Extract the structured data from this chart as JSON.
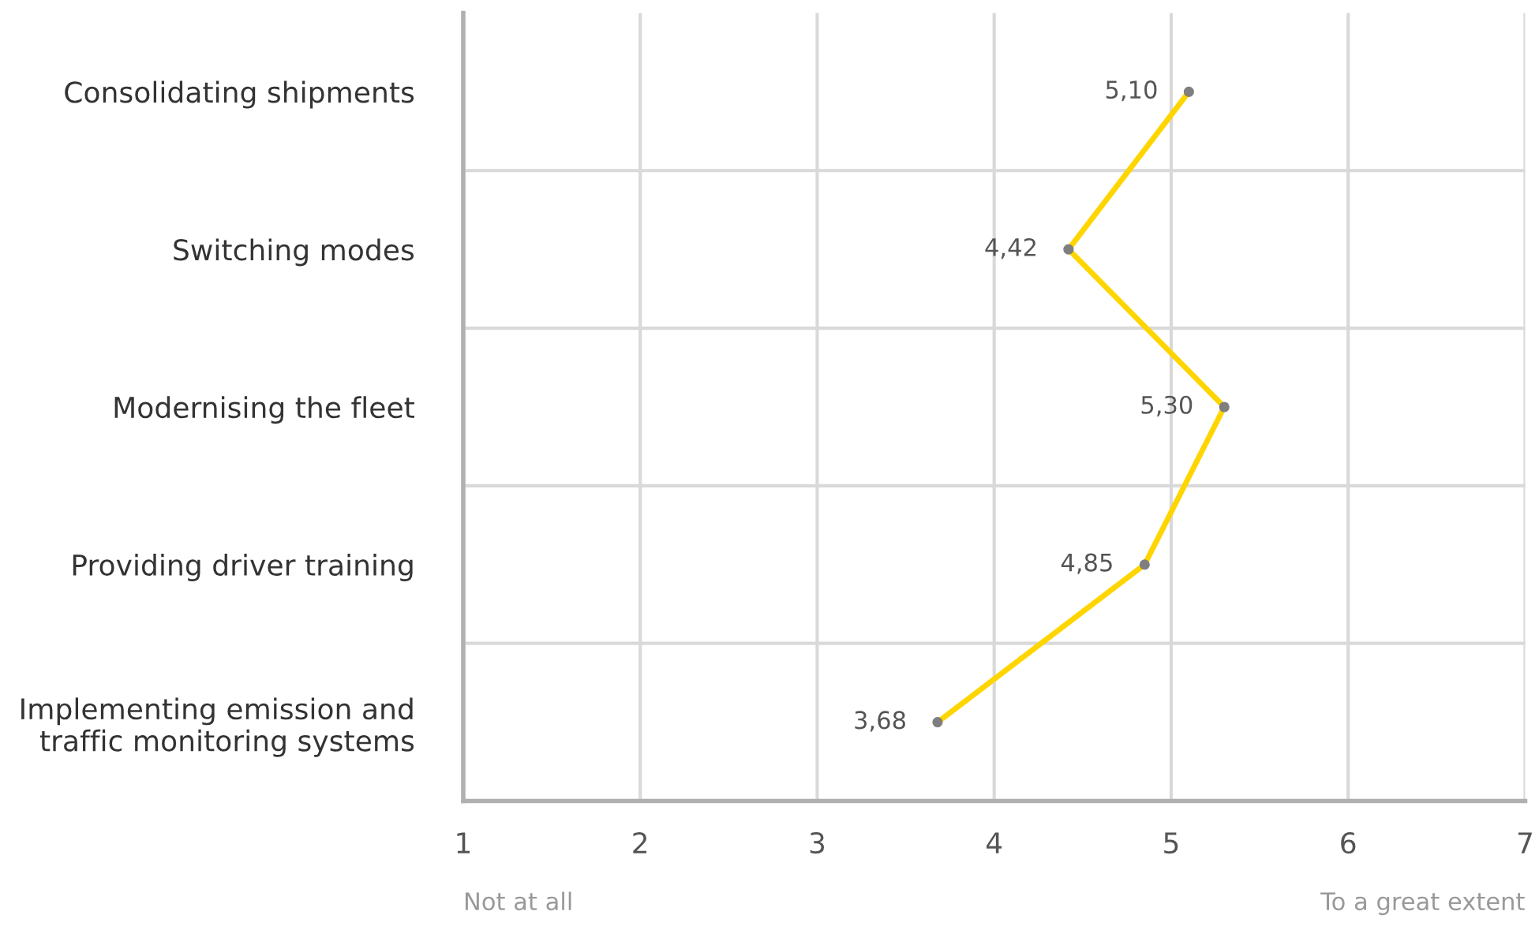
{
  "chart_data": {
    "type": "line",
    "orientation": "horizontal",
    "categories": [
      "Consolidating shipments",
      "Switching modes",
      "Modernising the fleet",
      "Providing driver training",
      "Implementing emission and\ntraffic monitoring systems"
    ],
    "series": [
      {
        "color": "#ffd500",
        "values": [
          5.1,
          4.42,
          5.3,
          4.85,
          3.68
        ],
        "value_labels": [
          "5,10",
          "4,42",
          "5,30",
          "4,85",
          "3,68"
        ]
      }
    ],
    "xlim": [
      1,
      7
    ],
    "xticks": [
      1,
      2,
      3,
      4,
      5,
      6,
      7
    ],
    "grid": true,
    "marker": "circle",
    "line_style": "solid",
    "annotations": [
      "Not at all",
      "To a great extent"
    ]
  }
}
